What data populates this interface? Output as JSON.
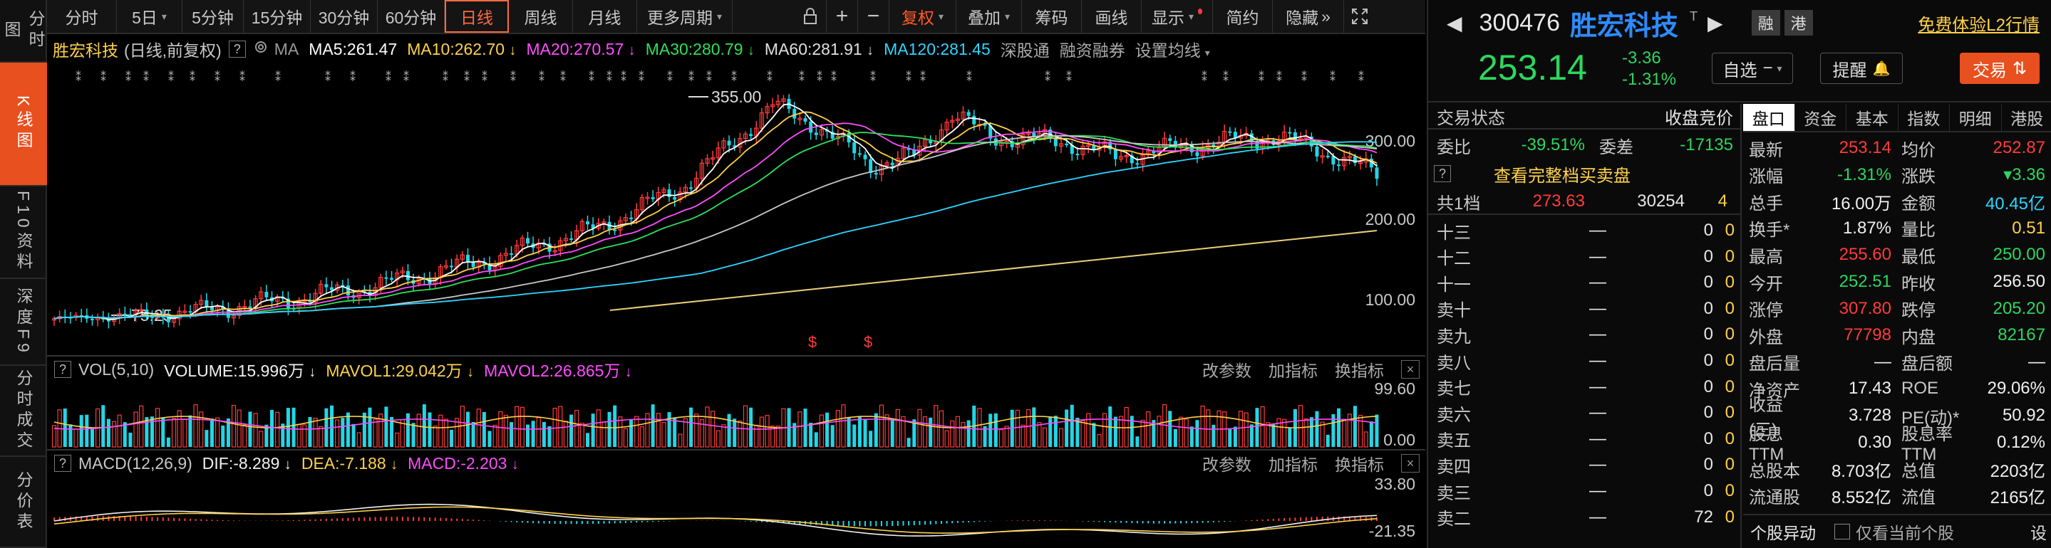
{
  "left_nav": [
    {
      "label": "分时图",
      "active": false
    },
    {
      "label": "K线图",
      "active": true
    },
    {
      "label": "F10资料",
      "active": false
    },
    {
      "label": "深度F9",
      "active": false
    },
    {
      "label": "分时成交",
      "active": false
    },
    {
      "label": "分价表",
      "active": false
    }
  ],
  "toolbar": {
    "periods": [
      "分时",
      "5日",
      "5分钟",
      "15分钟",
      "30分钟",
      "60分钟",
      "日线",
      "周线",
      "月线",
      "更多周期"
    ],
    "active_period": "日线",
    "lock_icon": "lock-icon",
    "zoom_in": "+",
    "zoom_out": "−",
    "fuquan": "复权",
    "overlay": "叠加",
    "chips": "筹码",
    "draw": "画线",
    "display": "显示",
    "concise": "简约",
    "hide": "隐藏",
    "hide_arrows": "»",
    "expand_icon": "expand-icon"
  },
  "main_legend": {
    "name": "胜宏科技",
    "mode": "(日线,前复权)",
    "help": "?",
    "ma_label": "MA",
    "ma5": "MA5:261.47",
    "ma10": "MA10:262.70",
    "ma20": "MA20:270.57",
    "ma30": "MA30:280.79",
    "ma60": "MA60:281.91",
    "ma120": "MA120:281.45",
    "link1": "深股通",
    "link2": "融资融券",
    "link3": "设置均线",
    "colors": {
      "ma5": "#ffffff",
      "ma10": "#ffd24a",
      "ma20": "#ff4dff",
      "ma30": "#2ee05a",
      "ma60": "#c8c8c8",
      "ma120": "#2ed6ff"
    }
  },
  "price_axis": {
    "labels": [
      "300.00",
      "200.00",
      "100.00"
    ],
    "high_marker": "355.00",
    "low_marker": "75.25"
  },
  "vol_legend": {
    "help": "?",
    "title": "VOL(5,10)",
    "volume": "VOLUME:15.996万",
    "mavol1": "MAVOL1:29.042万",
    "mavol2": "MAVOL2:26.865万",
    "links": [
      "改参数",
      "加指标",
      "换指标"
    ],
    "close": "×",
    "axis": [
      "99.60",
      "0.00"
    ]
  },
  "macd_legend": {
    "help": "?",
    "title": "MACD(12,26,9)",
    "dif": "DIF:-8.289",
    "dea": "DEA:-7.188",
    "macd": "MACD:-2.203",
    "links": [
      "改参数",
      "加指标",
      "换指标"
    ],
    "close": "×",
    "axis": [
      "33.80",
      "-21.35"
    ]
  },
  "event_marks": [
    "$",
    "$"
  ],
  "stock": {
    "code": "300476",
    "name": "胜宏科技",
    "tag": "T",
    "rong": "融",
    "gang": "港",
    "promo": "免费体验L2行情",
    "price": "253.14",
    "change": "-3.36",
    "change_pct": "-1.31%",
    "watchlist": "自选",
    "alert": "提醒",
    "trade": "交易"
  },
  "orderbook": {
    "status_label": "交易状态",
    "status_value": "收盘竞价",
    "weibi_label": "委比",
    "weibi_value": "-39.51%",
    "weicha_label": "委差",
    "weicha_value": "-17135",
    "view_full": "查看完整档买卖盘",
    "total_label": "共1档",
    "total_price": "273.63",
    "total_vol": "30254",
    "total_count": "4",
    "rows": [
      {
        "label": "十三",
        "price": "—",
        "vol": "0",
        "cnt": "0"
      },
      {
        "label": "十二",
        "price": "—",
        "vol": "0",
        "cnt": "0"
      },
      {
        "label": "十一",
        "price": "—",
        "vol": "0",
        "cnt": "0"
      },
      {
        "label": "卖十",
        "price": "—",
        "vol": "0",
        "cnt": "0"
      },
      {
        "label": "卖九",
        "price": "—",
        "vol": "0",
        "cnt": "0"
      },
      {
        "label": "卖八",
        "price": "—",
        "vol": "0",
        "cnt": "0"
      },
      {
        "label": "卖七",
        "price": "—",
        "vol": "0",
        "cnt": "0"
      },
      {
        "label": "卖六",
        "price": "—",
        "vol": "0",
        "cnt": "0"
      },
      {
        "label": "卖五",
        "price": "—",
        "vol": "0",
        "cnt": "0"
      },
      {
        "label": "卖四",
        "price": "—",
        "vol": "0",
        "cnt": "0"
      },
      {
        "label": "卖三",
        "price": "—",
        "vol": "0",
        "cnt": "0"
      },
      {
        "label": "卖二",
        "price": "—",
        "vol": "72",
        "cnt": "0"
      }
    ]
  },
  "quote_tabs": [
    "盘口",
    "资金",
    "基本",
    "指数",
    "明细",
    "港股"
  ],
  "quote_stats": [
    {
      "k1": "最新",
      "v1": "253.14",
      "c1": "red",
      "k2": "均价",
      "v2": "252.87",
      "c2": "red"
    },
    {
      "k1": "涨幅",
      "v1": "-1.31%",
      "c1": "green",
      "k2": "涨跌",
      "v2": "▾3.36",
      "c2": "green"
    },
    {
      "k1": "总手",
      "v1": "16.00万",
      "c1": "white",
      "k2": "金额",
      "v2": "40.45亿",
      "c2": "cyan"
    },
    {
      "k1": "换手*",
      "v1": "1.87%",
      "c1": "white",
      "k2": "量比",
      "v2": "0.51",
      "c2": "yellow"
    },
    {
      "k1": "最高",
      "v1": "255.60",
      "c1": "red",
      "k2": "最低",
      "v2": "250.00",
      "c2": "green"
    },
    {
      "k1": "今开",
      "v1": "252.51",
      "c1": "green",
      "k2": "昨收",
      "v2": "256.50",
      "c2": "white"
    },
    {
      "k1": "涨停",
      "v1": "307.80",
      "c1": "red",
      "k2": "跌停",
      "v2": "205.20",
      "c2": "green"
    },
    {
      "k1": "外盘",
      "v1": "77798",
      "c1": "red",
      "k2": "内盘",
      "v2": "82167",
      "c2": "green"
    },
    {
      "k1": "盘后量",
      "v1": "—",
      "c1": "white",
      "k2": "盘后额",
      "v2": "—",
      "c2": "white"
    },
    {
      "k1": "净资产",
      "v1": "17.43",
      "c1": "white",
      "k2": "ROE",
      "v2": "29.06%",
      "c2": "white"
    },
    {
      "k1": "收益(三)",
      "v1": "3.728",
      "c1": "white",
      "k2": "PE(动)*",
      "v2": "50.92",
      "c2": "white"
    },
    {
      "k1": "股息TTM",
      "v1": "0.30",
      "c1": "white",
      "k2": "股息率TTM",
      "v2": "0.12%",
      "c2": "white"
    },
    {
      "k1": "总股本",
      "v1": "8.703亿",
      "c1": "white",
      "k2": "总值",
      "v2": "2203亿",
      "c2": "white"
    },
    {
      "k1": "流通股",
      "v1": "8.552亿",
      "c1": "white",
      "k2": "流值",
      "v2": "2165亿",
      "c2": "white"
    }
  ],
  "bottom_bar": {
    "label": "个股异动",
    "checkbox": "仅看当前个股",
    "settings": "设"
  }
}
